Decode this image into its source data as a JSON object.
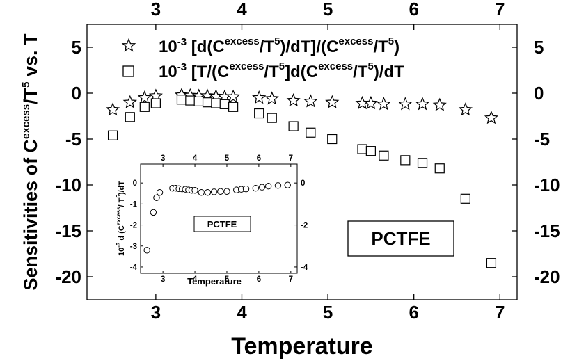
{
  "chart_data": [
    {
      "type": "scatter",
      "xlabel": "Temperature",
      "ylabel_main": "Sensitivities of C",
      "ylabel_sup": "excess",
      "ylabel_mid": "/T",
      "ylabel_sup2": "5",
      "ylabel_tail": " vs. T",
      "xlim": [
        2.2,
        7.2
      ],
      "ylim": [
        -22.5,
        7.5
      ],
      "xticks": [
        3,
        4,
        5,
        6,
        7
      ],
      "yticks": [
        5,
        0,
        -5,
        -10,
        -15,
        -20
      ],
      "tick_labels_on_top_and_right": true,
      "legend_placement": "top",
      "legend": [
        {
          "marker": "star",
          "p1": "10",
          "p1sup": "-3",
          "p2": " [d(C",
          "p2sup": "excess",
          "p3": "/T",
          "p3sup": "5",
          "p4": ")/dT]/(C",
          "p4sup": "excess",
          "p5": "/T",
          "p5sup": "5",
          "p6": ")"
        },
        {
          "marker": "square",
          "p1": "10",
          "p1sup": "-3",
          "p2": " [T/(C",
          "p2sup": "excess",
          "p3": "/T",
          "p3sup": "5",
          "p4": "]d(C",
          "p4sup": "excess",
          "p5": "/T",
          "p5sup": "5",
          "p6": ")/dT"
        }
      ],
      "annotation": "PCTFE",
      "series": [
        {
          "marker": "star",
          "points": [
            [
              2.5,
              -1.8
            ],
            [
              2.7,
              -1.0
            ],
            [
              2.87,
              -0.5
            ],
            [
              3.0,
              -0.3
            ],
            [
              3.3,
              -0.2
            ],
            [
              3.4,
              -0.25
            ],
            [
              3.5,
              -0.3
            ],
            [
              3.6,
              -0.3
            ],
            [
              3.7,
              -0.35
            ],
            [
              3.8,
              -0.4
            ],
            [
              3.9,
              -0.4
            ],
            [
              4.2,
              -0.5
            ],
            [
              4.35,
              -0.6
            ],
            [
              4.6,
              -0.8
            ],
            [
              4.8,
              -0.9
            ],
            [
              5.05,
              -1.0
            ],
            [
              5.4,
              -1.1
            ],
            [
              5.5,
              -1.1
            ],
            [
              5.65,
              -1.2
            ],
            [
              5.9,
              -1.2
            ],
            [
              6.1,
              -1.2
            ],
            [
              6.3,
              -1.3
            ],
            [
              6.6,
              -1.8
            ],
            [
              6.9,
              -2.7
            ]
          ]
        },
        {
          "marker": "square",
          "points": [
            [
              2.5,
              -4.6
            ],
            [
              2.7,
              -2.6
            ],
            [
              2.87,
              -1.5
            ],
            [
              3.0,
              -1.1
            ],
            [
              3.3,
              -0.7
            ],
            [
              3.4,
              -0.8
            ],
            [
              3.5,
              -0.9
            ],
            [
              3.6,
              -1.0
            ],
            [
              3.7,
              -1.1
            ],
            [
              3.8,
              -1.2
            ],
            [
              3.9,
              -1.5
            ],
            [
              4.2,
              -2.2
            ],
            [
              4.35,
              -2.7
            ],
            [
              4.6,
              -3.6
            ],
            [
              4.8,
              -4.3
            ],
            [
              5.05,
              -5.0
            ],
            [
              5.4,
              -6.1
            ],
            [
              5.5,
              -6.3
            ],
            [
              5.65,
              -6.8
            ],
            [
              5.9,
              -7.3
            ],
            [
              6.1,
              -7.6
            ],
            [
              6.3,
              -8.2
            ],
            [
              6.6,
              -11.5
            ],
            [
              6.9,
              -18.5
            ]
          ]
        }
      ]
    },
    {
      "type": "scatter",
      "placement": "inset",
      "xlabel": "Temperature",
      "ylabel_pre": "10",
      "ylabel_pre_sup": "-3",
      "ylabel_mid": " d (C",
      "ylabel_mid_sup": "excess",
      "ylabel_mid2": "/ T",
      "ylabel_mid2_sup": "5",
      "ylabel_tail": ")/dT",
      "xlim": [
        2.3,
        7.2
      ],
      "ylim": [
        -4.3,
        0.9
      ],
      "xticks": [
        3,
        4,
        5,
        6,
        7
      ],
      "yticks": [
        0,
        -1,
        -2,
        -3,
        -4
      ],
      "yticks_right": [
        0,
        -2,
        -4
      ],
      "annotation": "PCTFE",
      "series": [
        {
          "marker": "circle",
          "points": [
            [
              2.5,
              -3.2
            ],
            [
              2.7,
              -1.4
            ],
            [
              2.8,
              -0.7
            ],
            [
              2.9,
              -0.45
            ],
            [
              3.3,
              -0.25
            ],
            [
              3.4,
              -0.25
            ],
            [
              3.5,
              -0.27
            ],
            [
              3.6,
              -0.28
            ],
            [
              3.7,
              -0.3
            ],
            [
              3.8,
              -0.33
            ],
            [
              3.9,
              -0.35
            ],
            [
              4.0,
              -0.35
            ],
            [
              4.2,
              -0.45
            ],
            [
              4.4,
              -0.45
            ],
            [
              4.6,
              -0.42
            ],
            [
              4.8,
              -0.4
            ],
            [
              5.0,
              -0.4
            ],
            [
              5.3,
              -0.33
            ],
            [
              5.45,
              -0.3
            ],
            [
              5.6,
              -0.28
            ],
            [
              5.9,
              -0.25
            ],
            [
              6.1,
              -0.2
            ],
            [
              6.3,
              -0.15
            ],
            [
              6.6,
              -0.12
            ],
            [
              6.9,
              -0.1
            ]
          ]
        }
      ]
    }
  ]
}
